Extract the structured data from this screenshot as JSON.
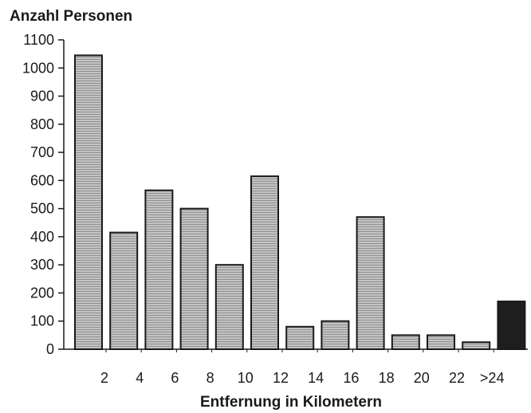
{
  "chart_data": {
    "type": "bar",
    "ylabel": "Anzahl Personen",
    "xlabel": "Entfernung in Kilometern",
    "ylim": [
      0,
      1100
    ],
    "yticks": [
      0,
      100,
      200,
      300,
      400,
      500,
      600,
      700,
      800,
      900,
      1000,
      1100
    ],
    "xtick_labels": [
      "2",
      "4",
      "6",
      "8",
      "10",
      "12",
      "14",
      "16",
      "18",
      "20",
      "22",
      ">24"
    ],
    "values": [
      1045,
      415,
      565,
      500,
      300,
      615,
      80,
      100,
      470,
      50,
      50,
      25,
      170
    ],
    "bar_colors": [
      "#b5b5b5",
      "#b5b5b5",
      "#b5b5b5",
      "#b5b5b5",
      "#b5b5b5",
      "#b5b5b5",
      "#b5b5b5",
      "#b5b5b5",
      "#b5b5b5",
      "#b5b5b5",
      "#b5b5b5",
      "#b5b5b5",
      "#1e1e1e"
    ],
    "grid": false
  }
}
